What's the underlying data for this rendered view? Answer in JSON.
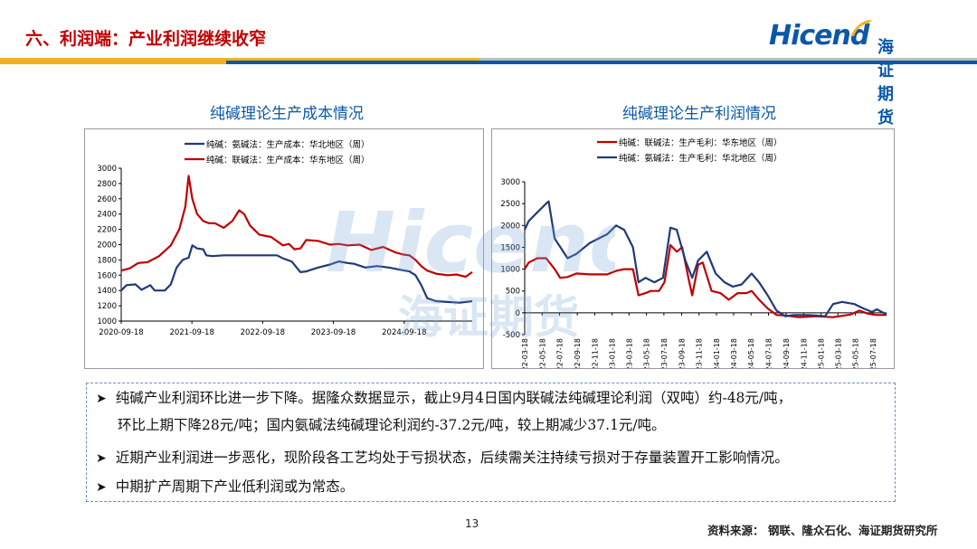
{
  "header": {
    "title": "六、利润端：产业利润继续收窄",
    "logo_en": "Hicend",
    "logo_cn": "海证期货"
  },
  "colors": {
    "brand_blue": "#0b58a6",
    "title_red": "#c00000",
    "series_blue": "#1f3a7a",
    "series_red": "#c00000",
    "bar_yellow": "#f2b21e",
    "bar_gray": "#bdbdbd"
  },
  "watermark": {
    "en": "Hicend",
    "cn": "海证期货"
  },
  "chart_data": [
    {
      "type": "line",
      "title": "纯碱理论生产成本情况",
      "legend_position": "top",
      "grid": false,
      "xlim": [
        "2020-09-18",
        "2025-09-04"
      ],
      "ylim": [
        1000,
        3000
      ],
      "yticks": [
        "1000",
        "1200",
        "1400",
        "1600",
        "1800",
        "2000",
        "2200",
        "2400",
        "2600",
        "2800",
        "3000"
      ],
      "xticks": [
        "2020-09-18",
        "2021-09-18",
        "2022-09-18",
        "2023-09-18",
        "2024-09-18"
      ],
      "series": [
        {
          "name": "纯碱：氨碱法：生产成本：华北地区（周）",
          "color": "#1f3a7a",
          "points": [
            [
              "2020-09-18",
              1400
            ],
            [
              "2020-10-15",
              1470
            ],
            [
              "2020-12-01",
              1480
            ],
            [
              "2021-01-01",
              1410
            ],
            [
              "2021-02-15",
              1470
            ],
            [
              "2021-03-10",
              1400
            ],
            [
              "2021-05-01",
              1400
            ],
            [
              "2021-06-01",
              1480
            ],
            [
              "2021-07-01",
              1700
            ],
            [
              "2021-08-01",
              1800
            ],
            [
              "2021-09-01",
              1830
            ],
            [
              "2021-09-20",
              1990
            ],
            [
              "2021-10-15",
              1950
            ],
            [
              "2021-11-15",
              1940
            ],
            [
              "2021-12-01",
              1860
            ],
            [
              "2022-01-01",
              1850
            ],
            [
              "2022-03-01",
              1860
            ],
            [
              "2022-06-01",
              1860
            ],
            [
              "2022-09-01",
              1860
            ],
            [
              "2022-12-01",
              1860
            ],
            [
              "2023-01-01",
              1820
            ],
            [
              "2023-02-15",
              1780
            ],
            [
              "2023-04-01",
              1640
            ],
            [
              "2023-05-01",
              1650
            ],
            [
              "2023-07-01",
              1700
            ],
            [
              "2023-09-01",
              1740
            ],
            [
              "2023-10-15",
              1780
            ],
            [
              "2023-12-01",
              1760
            ],
            [
              "2024-01-01",
              1750
            ],
            [
              "2024-03-01",
              1700
            ],
            [
              "2024-05-01",
              1720
            ],
            [
              "2024-07-01",
              1700
            ],
            [
              "2024-09-01",
              1670
            ],
            [
              "2024-10-15",
              1650
            ],
            [
              "2024-11-15",
              1600
            ],
            [
              "2024-12-15",
              1470
            ],
            [
              "2025-01-15",
              1300
            ],
            [
              "2025-03-01",
              1260
            ],
            [
              "2025-05-01",
              1250
            ],
            [
              "2025-07-01",
              1240
            ],
            [
              "2025-09-04",
              1260
            ]
          ]
        },
        {
          "name": "纯碱：联碱法：生产成本：华东地区（周）",
          "color": "#c00000",
          "points": [
            [
              "2020-09-18",
              1660
            ],
            [
              "2020-11-01",
              1690
            ],
            [
              "2020-12-15",
              1760
            ],
            [
              "2021-02-01",
              1770
            ],
            [
              "2021-04-01",
              1850
            ],
            [
              "2021-06-01",
              1990
            ],
            [
              "2021-07-15",
              2200
            ],
            [
              "2021-08-15",
              2500
            ],
            [
              "2021-09-01",
              2900
            ],
            [
              "2021-09-20",
              2600
            ],
            [
              "2021-10-15",
              2400
            ],
            [
              "2021-11-15",
              2310
            ],
            [
              "2021-12-15",
              2280
            ],
            [
              "2022-01-15",
              2280
            ],
            [
              "2022-03-01",
              2220
            ],
            [
              "2022-04-15",
              2310
            ],
            [
              "2022-05-20",
              2450
            ],
            [
              "2022-06-15",
              2400
            ],
            [
              "2022-07-15",
              2250
            ],
            [
              "2022-09-01",
              2130
            ],
            [
              "2022-11-01",
              2100
            ],
            [
              "2023-01-01",
              1990
            ],
            [
              "2023-02-01",
              2010
            ],
            [
              "2023-03-01",
              1940
            ],
            [
              "2023-04-01",
              1950
            ],
            [
              "2023-05-01",
              2060
            ],
            [
              "2023-07-01",
              2050
            ],
            [
              "2023-09-01",
              2000
            ],
            [
              "2023-10-15",
              2010
            ],
            [
              "2023-12-01",
              1990
            ],
            [
              "2024-02-01",
              2000
            ],
            [
              "2024-04-01",
              1930
            ],
            [
              "2024-06-01",
              1970
            ],
            [
              "2024-08-01",
              1900
            ],
            [
              "2024-09-15",
              1870
            ],
            [
              "2024-10-15",
              1860
            ],
            [
              "2024-11-15",
              1800
            ],
            [
              "2024-12-15",
              1720
            ],
            [
              "2025-01-15",
              1660
            ],
            [
              "2025-03-01",
              1620
            ],
            [
              "2025-05-01",
              1600
            ],
            [
              "2025-06-15",
              1610
            ],
            [
              "2025-08-01",
              1580
            ],
            [
              "2025-09-04",
              1640
            ]
          ]
        }
      ]
    },
    {
      "type": "line",
      "title": "纯碱理论生产利润情况",
      "legend_position": "top",
      "grid": false,
      "xlim": [
        "2022-03-18",
        "2025-09-04"
      ],
      "ylim": [
        -500,
        3000
      ],
      "yticks": [
        "-500",
        "0",
        "500",
        "1000",
        "1500",
        "2000",
        "2500",
        "3000"
      ],
      "xticks": [
        "2022-03-18",
        "2022-05-18",
        "2022-07-18",
        "2022-09-18",
        "2022-11-18",
        "2023-01-18",
        "2023-03-18",
        "2023-05-18",
        "2023-07-18",
        "2023-09-18",
        "2023-11-18",
        "2024-01-18",
        "2024-03-18",
        "2024-05-18",
        "2024-07-18",
        "2024-09-18",
        "2024-11-18",
        "2025-01-18",
        "2025-03-18",
        "2025-05-18",
        "2025-07-18"
      ],
      "series": [
        {
          "name": "纯碱：联碱法：生产毛利：华东地区（周）",
          "color": "#c00000",
          "points": [
            [
              "2022-03-18",
              1000
            ],
            [
              "2022-04-01",
              1150
            ],
            [
              "2022-05-01",
              1250
            ],
            [
              "2022-06-01",
              1250
            ],
            [
              "2022-07-01",
              1000
            ],
            [
              "2022-07-20",
              800
            ],
            [
              "2022-08-15",
              820
            ],
            [
              "2022-09-15",
              900
            ],
            [
              "2022-11-01",
              880
            ],
            [
              "2023-01-01",
              880
            ],
            [
              "2023-02-01",
              960
            ],
            [
              "2023-03-01",
              1000
            ],
            [
              "2023-04-01",
              1000
            ],
            [
              "2023-04-20",
              400
            ],
            [
              "2023-05-15",
              450
            ],
            [
              "2023-06-01",
              500
            ],
            [
              "2023-07-01",
              500
            ],
            [
              "2023-07-20",
              700
            ],
            [
              "2023-08-10",
              1550
            ],
            [
              "2023-09-01",
              1400
            ],
            [
              "2023-09-20",
              1500
            ],
            [
              "2023-10-15",
              700
            ],
            [
              "2023-10-25",
              400
            ],
            [
              "2023-11-15",
              1100
            ],
            [
              "2023-12-01",
              1150
            ],
            [
              "2024-01-01",
              500
            ],
            [
              "2024-02-01",
              450
            ],
            [
              "2024-03-01",
              300
            ],
            [
              "2024-04-01",
              450
            ],
            [
              "2024-05-01",
              450
            ],
            [
              "2024-05-20",
              500
            ],
            [
              "2024-06-15",
              300
            ],
            [
              "2024-07-15",
              100
            ],
            [
              "2024-08-15",
              -50
            ],
            [
              "2024-09-15",
              -60
            ],
            [
              "2024-11-01",
              -100
            ],
            [
              "2025-01-01",
              -80
            ],
            [
              "2025-03-01",
              -100
            ],
            [
              "2025-05-01",
              -40
            ],
            [
              "2025-06-01",
              50
            ],
            [
              "2025-07-01",
              -20
            ],
            [
              "2025-08-01",
              -50
            ],
            [
              "2025-09-04",
              -48
            ]
          ]
        },
        {
          "name": "纯碱：氨碱法：生产毛利：华北地区（周）",
          "color": "#1f3a7a",
          "points": [
            [
              "2022-03-18",
              1900
            ],
            [
              "2022-04-01",
              2100
            ],
            [
              "2022-05-01",
              2300
            ],
            [
              "2022-06-01",
              2500
            ],
            [
              "2022-06-10",
              2550
            ],
            [
              "2022-07-01",
              1700
            ],
            [
              "2022-08-15",
              1250
            ],
            [
              "2022-09-15",
              1350
            ],
            [
              "2022-11-01",
              1600
            ],
            [
              "2023-01-01",
              1800
            ],
            [
              "2023-02-01",
              2000
            ],
            [
              "2023-03-01",
              1900
            ],
            [
              "2023-04-01",
              1500
            ],
            [
              "2023-04-20",
              700
            ],
            [
              "2023-05-15",
              800
            ],
            [
              "2023-06-15",
              700
            ],
            [
              "2023-07-15",
              800
            ],
            [
              "2023-08-10",
              1950
            ],
            [
              "2023-09-01",
              1900
            ],
            [
              "2023-10-01",
              1200
            ],
            [
              "2023-10-25",
              800
            ],
            [
              "2023-11-15",
              1200
            ],
            [
              "2023-12-15",
              1400
            ],
            [
              "2024-01-15",
              900
            ],
            [
              "2024-02-15",
              700
            ],
            [
              "2024-03-15",
              600
            ],
            [
              "2024-04-15",
              650
            ],
            [
              "2024-05-20",
              900
            ],
            [
              "2024-06-15",
              700
            ],
            [
              "2024-07-15",
              400
            ],
            [
              "2024-08-15",
              50
            ],
            [
              "2024-09-15",
              -80
            ],
            [
              "2024-10-15",
              -50
            ],
            [
              "2024-12-01",
              -50
            ],
            [
              "2025-01-01",
              -60
            ],
            [
              "2025-02-01",
              -80
            ],
            [
              "2025-03-01",
              200
            ],
            [
              "2025-04-01",
              250
            ],
            [
              "2025-05-15",
              200
            ],
            [
              "2025-06-15",
              100
            ],
            [
              "2025-07-15",
              20
            ],
            [
              "2025-08-01",
              80
            ],
            [
              "2025-09-04",
              -37.2
            ]
          ]
        }
      ]
    }
  ],
  "bullets": [
    {
      "lines": [
        "纯碱产业利润环比进一步下降。据隆众数据显示，截止9月4日国内联碱法纯碱理论利润（双吨）约-48元/吨，",
        "环比上期下降28元/吨；国内氨碱法纯碱理论利润约-37.2元/吨，较上期减少37.1元/吨。"
      ]
    },
    {
      "lines": [
        "近期产业利润进一步恶化，现阶段各工艺均处于亏损状态，后续需关注持续亏损对于存量装置开工影响情况。"
      ]
    },
    {
      "lines": [
        "中期扩产周期下产业低利润或为常态。"
      ]
    }
  ],
  "footer": {
    "page_number": "13",
    "source": "资料来源：  钢联、隆众石化、海证期货研究所"
  }
}
